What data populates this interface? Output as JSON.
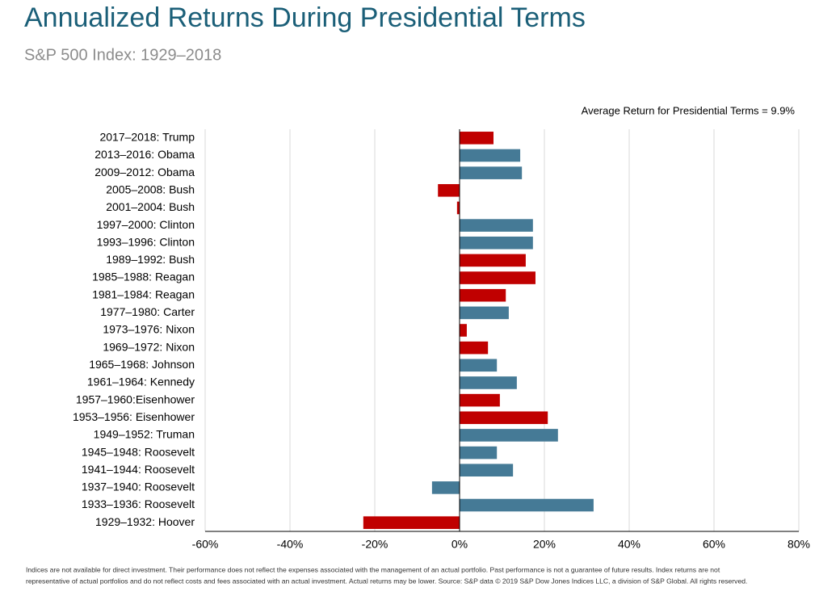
{
  "chart_data": {
    "type": "hbar",
    "title": "Annualized Returns During Presidential Terms",
    "subtitle": "S&P 500 Index: 1929–2018",
    "annotation": "Average Return for Presidential Terms = 9.9%",
    "footnote": [
      "Indices are not available for direct investment. Their performance does not reflect the expenses associated with the management of an actual portfolio. Past performance is not a guarantee of future results. Index returns are not",
      "representative of actual portfolios and do not reflect costs and fees associated with an actual investment. Actual returns may be lower. Source: S&P data © 2019 S&P Dow Jones Indices LLC, a division of S&P Global. All rights reserved."
    ],
    "categories": [
      "2017–2018: Trump",
      "2013–2016: Obama",
      "2009–2012: Obama",
      "2005–2008: Bush",
      "2001–2004: Bush",
      "1997–2000: Clinton",
      "1993–1996: Clinton",
      "1989–1992: Bush",
      "1985–1988: Reagan",
      "1981–1984: Reagan",
      "1977–1980: Carter",
      "1973–1976: Nixon",
      "1969–1972: Nixon",
      "1965–1968: Johnson",
      "1961–1964: Kennedy",
      "1957–1960:Eisenhower",
      "1953–1956: Eisenhower",
      "1949–1952: Truman",
      "1945–1948: Roosevelt",
      "1941–1944: Roosevelt",
      "1937–1940: Roosevelt",
      "1933–1936: Roosevelt",
      "1929–1932: Hoover"
    ],
    "values": [
      8.0,
      14.3,
      14.7,
      -5.1,
      -0.6,
      17.3,
      17.3,
      15.6,
      17.9,
      10.9,
      11.6,
      1.7,
      6.7,
      8.8,
      13.5,
      9.5,
      20.8,
      23.2,
      8.8,
      12.6,
      -6.5,
      31.6,
      -22.7
    ],
    "colors": [
      "#c00000",
      "#457a96",
      "#457a96",
      "#c00000",
      "#c00000",
      "#457a96",
      "#457a96",
      "#c00000",
      "#c00000",
      "#c00000",
      "#457a96",
      "#c00000",
      "#c00000",
      "#457a96",
      "#457a96",
      "#c00000",
      "#c00000",
      "#457a96",
      "#457a96",
      "#457a96",
      "#457a96",
      "#457a96",
      "#c00000"
    ],
    "xlim": [
      -60,
      80
    ],
    "xticks": [
      {
        "value": -60,
        "label": "-60%"
      },
      {
        "value": -40,
        "label": "-40%"
      },
      {
        "value": -20,
        "label": "-20%"
      },
      {
        "value": 0,
        "label": "0%"
      },
      {
        "value": 20,
        "label": "20%"
      },
      {
        "value": 40,
        "label": "40%"
      },
      {
        "value": 60,
        "label": "60%"
      },
      {
        "value": 80,
        "label": "80%"
      }
    ],
    "grid": true
  }
}
